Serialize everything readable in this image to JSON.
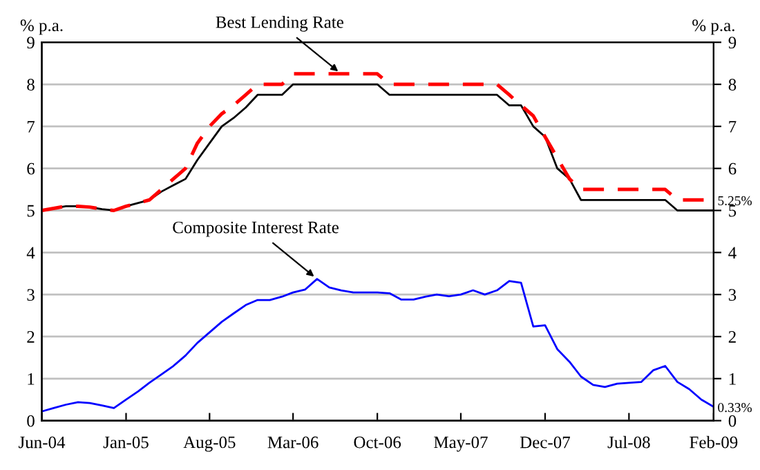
{
  "chart_data": {
    "type": "line",
    "ylabel": "% p.a.",
    "y2label": "% p.a.",
    "x": [
      "2004-06",
      "2004-07",
      "2004-08",
      "2004-09",
      "2004-10",
      "2004-11",
      "2004-12",
      "2005-01",
      "2005-02",
      "2005-03",
      "2005-04",
      "2005-05",
      "2005-06",
      "2005-07",
      "2005-08",
      "2005-09",
      "2005-10",
      "2005-11",
      "2005-12",
      "2006-01",
      "2006-02",
      "2006-03",
      "2006-04",
      "2006-05",
      "2006-06",
      "2006-07",
      "2006-08",
      "2006-09",
      "2006-10",
      "2006-11",
      "2006-12",
      "2007-01",
      "2007-02",
      "2007-03",
      "2007-04",
      "2007-05",
      "2007-06",
      "2007-07",
      "2007-08",
      "2007-09",
      "2007-10",
      "2007-11",
      "2007-12",
      "2008-01",
      "2008-02",
      "2008-03",
      "2008-04",
      "2008-05",
      "2008-06",
      "2008-07",
      "2008-08",
      "2008-09",
      "2008-10",
      "2008-11",
      "2008-12",
      "2009-01",
      "2009-02"
    ],
    "series": [
      {
        "color": "#000000",
        "line_style": "solid",
        "values": [
          5.0,
          5.05,
          5.1,
          5.1,
          5.08,
          5.03,
          5.0,
          5.1,
          5.18,
          5.25,
          5.45,
          5.6,
          5.75,
          6.2,
          6.6,
          7.0,
          7.2,
          7.45,
          7.75,
          7.75,
          7.75,
          8.0,
          8.0,
          8.0,
          8.0,
          8.0,
          8.0,
          8.0,
          8.0,
          7.75,
          7.75,
          7.75,
          7.75,
          7.75,
          7.75,
          7.75,
          7.75,
          7.75,
          7.75,
          7.5,
          7.5,
          7.0,
          6.75,
          6.0,
          5.75,
          5.25,
          5.25,
          5.25,
          5.25,
          5.25,
          5.25,
          5.25,
          5.25,
          5.0,
          5.0,
          5.0,
          5.0
        ]
      },
      {
        "color": "#ff0000",
        "line_style": "dashed",
        "values": [
          5.0,
          5.05,
          5.1,
          5.1,
          5.08,
          5.03,
          5.0,
          5.1,
          5.18,
          5.25,
          5.5,
          5.75,
          6.0,
          6.6,
          7.0,
          7.3,
          7.5,
          7.75,
          8.0,
          8.0,
          8.0,
          8.25,
          8.25,
          8.25,
          8.25,
          8.25,
          8.25,
          8.25,
          8.25,
          8.0,
          8.0,
          8.0,
          8.0,
          8.0,
          8.0,
          8.0,
          8.0,
          8.0,
          8.0,
          7.75,
          7.5,
          7.25,
          6.75,
          6.25,
          5.75,
          5.5,
          5.5,
          5.5,
          5.5,
          5.5,
          5.5,
          5.5,
          5.5,
          5.25,
          5.25,
          5.25,
          5.25
        ],
        "value_labels": [
          null,
          null,
          null,
          null,
          null,
          null,
          null,
          null,
          null,
          null,
          null,
          null,
          null,
          null,
          null,
          null,
          null,
          null,
          null,
          null,
          null,
          null,
          null,
          null,
          null,
          null,
          null,
          null,
          null,
          null,
          null,
          null,
          null,
          null,
          null,
          null,
          null,
          null,
          null,
          null,
          null,
          null,
          null,
          null,
          null,
          null,
          null,
          null,
          null,
          null,
          null,
          null,
          null,
          null,
          null,
          null,
          "5.25%"
        ]
      },
      {
        "color": "#0000ff",
        "line_style": "solid",
        "values": [
          0.22,
          0.3,
          0.38,
          0.44,
          0.42,
          0.36,
          0.3,
          0.5,
          0.7,
          0.9,
          1.1,
          1.3,
          1.55,
          1.85,
          2.1,
          2.35,
          2.55,
          2.75,
          2.87,
          2.87,
          2.95,
          3.05,
          3.12,
          3.37,
          3.17,
          3.1,
          3.05,
          3.05,
          3.05,
          3.03,
          2.88,
          2.88,
          2.95,
          3.0,
          2.96,
          3.0,
          3.1,
          3.0,
          3.1,
          3.32,
          3.28,
          2.24,
          2.27,
          1.7,
          1.4,
          1.05,
          0.85,
          0.8,
          0.88,
          0.9,
          0.92,
          1.2,
          1.3,
          0.92,
          0.75,
          0.5,
          0.33
        ],
        "value_labels": [
          null,
          null,
          null,
          null,
          null,
          null,
          null,
          null,
          null,
          null,
          null,
          null,
          null,
          null,
          null,
          null,
          null,
          null,
          null,
          null,
          null,
          null,
          null,
          null,
          null,
          null,
          null,
          null,
          null,
          null,
          null,
          null,
          null,
          null,
          null,
          null,
          null,
          null,
          null,
          null,
          null,
          null,
          null,
          null,
          null,
          null,
          null,
          null,
          null,
          null,
          null,
          null,
          null,
          null,
          null,
          null,
          "0.33%"
        ]
      }
    ],
    "annotations": [
      {
        "text": "Best Lending Rate",
        "x": "2006-07",
        "y": 8.25
      },
      {
        "text": "Composite Interest Rate",
        "x": "2006-05",
        "y": 3.37
      }
    ],
    "xlim": [
      "2004-06",
      "2009-02"
    ],
    "xticks": [
      {
        "value": "2004-06",
        "label": "Jun-04"
      },
      {
        "value": "2005-01",
        "label": "Jan-05"
      },
      {
        "value": "2005-08",
        "label": "Aug-05"
      },
      {
        "value": "2006-03",
        "label": "Mar-06"
      },
      {
        "value": "2006-10",
        "label": "Oct-06"
      },
      {
        "value": "2007-05",
        "label": "May-07"
      },
      {
        "value": "2007-12",
        "label": "Dec-07"
      },
      {
        "value": "2008-07",
        "label": "Jul-08"
      },
      {
        "value": "2009-02",
        "label": "Feb-09"
      }
    ],
    "ylim": [
      0,
      9
    ],
    "yticks": [
      0,
      1,
      2,
      3,
      4,
      5,
      6,
      7,
      8,
      9
    ],
    "y2lim": [
      0,
      9
    ],
    "y2ticks": [
      0,
      1,
      2,
      3,
      4,
      5,
      6,
      7,
      8,
      9
    ],
    "grid": "y",
    "legend": false
  }
}
